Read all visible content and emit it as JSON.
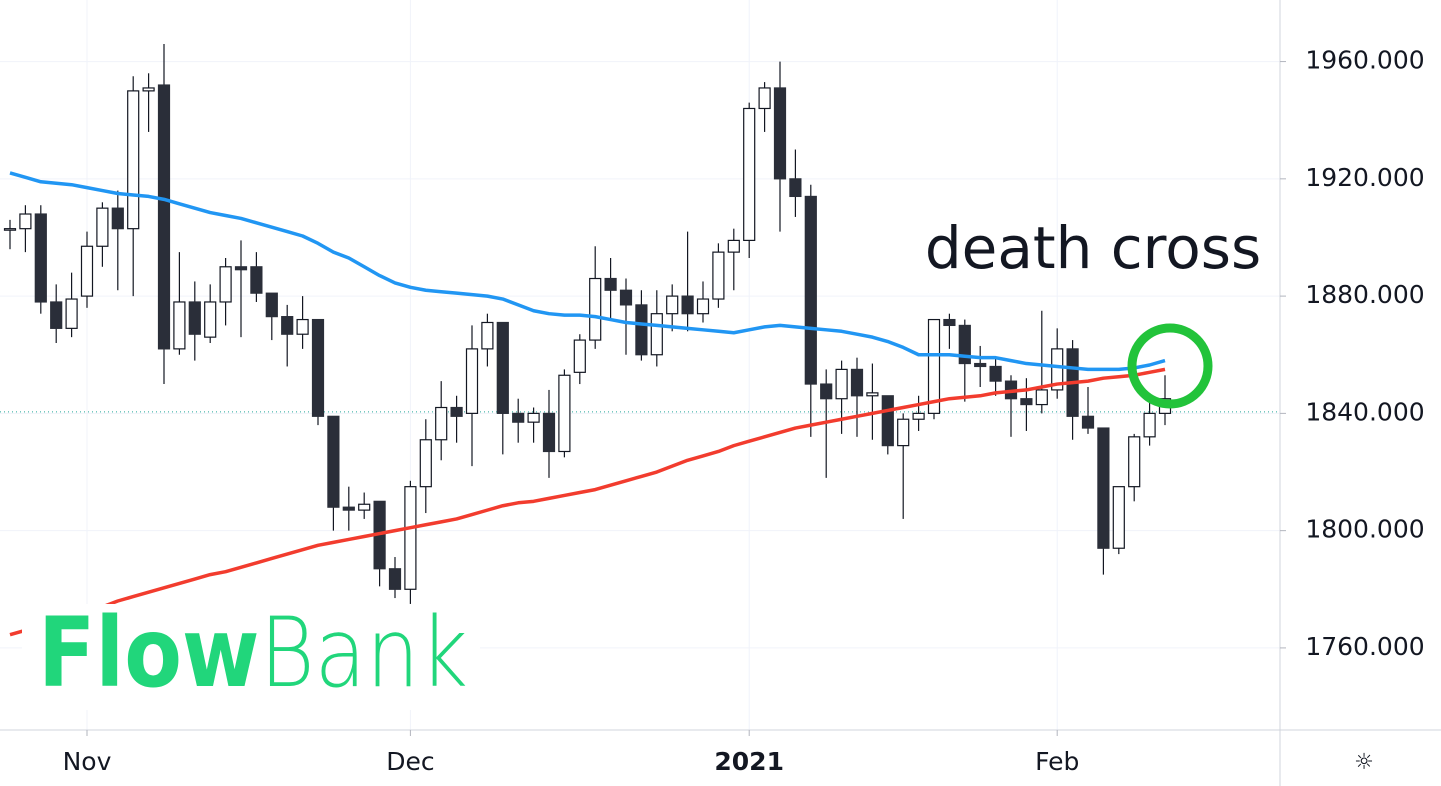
{
  "chart_data": {
    "type": "candlestick",
    "annotation": "death cross",
    "logo": {
      "bold": "Flow",
      "light": "Bank"
    },
    "categories": [
      null,
      null,
      null,
      null,
      null,
      "Nov",
      null,
      null,
      null,
      null,
      null,
      null,
      null,
      null,
      null,
      null,
      null,
      null,
      null,
      null,
      null,
      null,
      null,
      null,
      null,
      null,
      "Dec",
      null,
      null,
      null,
      null,
      null,
      null,
      null,
      null,
      null,
      null,
      null,
      null,
      null,
      null,
      null,
      null,
      null,
      null,
      null,
      null,
      null,
      "2021",
      null,
      null,
      null,
      null,
      null,
      null,
      null,
      null,
      null,
      null,
      null,
      null,
      null,
      null,
      null,
      null,
      null,
      null,
      null,
      "Feb",
      null,
      null,
      null,
      null,
      null,
      null,
      null
    ],
    "open": [
      1903,
      1903,
      1908,
      1878,
      1869,
      1880,
      1897,
      1910,
      1903,
      1950,
      1952,
      1862,
      1878,
      1866,
      1878,
      1890,
      1890,
      1881,
      1873,
      1867,
      1872,
      1839,
      1808,
      1807,
      1810,
      1787,
      1780,
      1815,
      1831,
      1842,
      1840,
      1862,
      1871,
      1840,
      1837,
      1840,
      1827,
      1854,
      1865,
      1886,
      1882,
      1877,
      1860,
      1874,
      1880,
      1874,
      1879,
      1895,
      1899,
      1944,
      1951,
      1920,
      1914,
      1850,
      1845,
      1855,
      1846,
      1846,
      1829,
      1838,
      1840,
      1872,
      1870,
      1857,
      1856,
      1851,
      1845,
      1843,
      1848,
      1862,
      1839,
      1835,
      1794,
      1815,
      1832,
      1840
    ],
    "high": [
      1906,
      1911,
      1911,
      1884,
      1888,
      1902,
      1912,
      1916,
      1955,
      1956,
      1966,
      1895,
      1885,
      1884,
      1893,
      1899,
      1895,
      1881,
      1877,
      1880,
      1872,
      1839,
      1815,
      1813,
      1810,
      1791,
      1817,
      1838,
      1851,
      1846,
      1870,
      1874,
      1871,
      1845,
      1842,
      1848,
      1855,
      1867,
      1897,
      1893,
      1886,
      1882,
      1882,
      1884,
      1902,
      1885,
      1898,
      1903,
      1946,
      1953,
      1960,
      1930,
      1918,
      1855,
      1858,
      1859,
      1857,
      1846,
      1840,
      1846,
      1872,
      1874,
      1872,
      1863,
      1859,
      1853,
      1852,
      1875,
      1869,
      1865,
      1849,
      1835,
      1815,
      1833,
      1845,
      1853
    ],
    "low": [
      1896,
      1895,
      1874,
      1864,
      1866,
      1876,
      1890,
      1882,
      1880,
      1936,
      1850,
      1860,
      1858,
      1864,
      1870,
      1866,
      1878,
      1865,
      1856,
      1862,
      1836,
      1800,
      1800,
      1804,
      1781,
      1777,
      1775,
      1806,
      1824,
      1830,
      1822,
      1856,
      1826,
      1830,
      1830,
      1818,
      1825,
      1850,
      1862,
      1872,
      1860,
      1858,
      1856,
      1868,
      1868,
      1871,
      1876,
      1882,
      1893,
      1936,
      1902,
      1907,
      1832,
      1818,
      1833,
      1832,
      1831,
      1826,
      1804,
      1834,
      1838,
      1862,
      1844,
      1849,
      1846,
      1832,
      1834,
      1840,
      1845,
      1831,
      1833,
      1785,
      1792,
      1810,
      1829,
      1836
    ],
    "close": [
      1903,
      1908,
      1878,
      1869,
      1879,
      1897,
      1910,
      1903,
      1950,
      1951,
      1862,
      1878,
      1867,
      1878,
      1890,
      1889,
      1881,
      1873,
      1867,
      1872,
      1839,
      1808,
      1807,
      1809,
      1787,
      1780,
      1815,
      1831,
      1842,
      1839,
      1862,
      1871,
      1840,
      1837,
      1840,
      1827,
      1853,
      1865,
      1886,
      1882,
      1877,
      1860,
      1874,
      1880,
      1874,
      1879,
      1895,
      1899,
      1944,
      1951,
      1920,
      1914,
      1850,
      1845,
      1855,
      1846,
      1847,
      1829,
      1838,
      1840,
      1872,
      1870,
      1857,
      1856,
      1851,
      1845,
      1843,
      1848,
      1862,
      1839,
      1835,
      1794,
      1815,
      1832,
      1840,
      1845
    ],
    "up_color": "#ffffff",
    "down_color": "#2a2e39",
    "series": [
      {
        "color": "#2196f3",
        "values": [
          1922,
          1920.5,
          1919,
          1918.5,
          1918,
          1917,
          1916,
          1915,
          1914.5,
          1914,
          1913,
          1911.5,
          1910,
          1908.5,
          1907.5,
          1906.5,
          1905,
          1903.5,
          1902,
          1900.5,
          1898,
          1895,
          1893,
          1890,
          1887,
          1884.5,
          1883,
          1882,
          1881.5,
          1881,
          1880.5,
          1880,
          1879,
          1877,
          1875,
          1874,
          1873.5,
          1873.5,
          1873,
          1872,
          1871,
          1870.5,
          1870,
          1869.5,
          1869,
          1868.5,
          1868,
          1867.5,
          1868.5,
          1869.5,
          1870,
          1869.5,
          1869,
          1868.5,
          1868,
          1867,
          1866,
          1864.5,
          1862.5,
          1860,
          1860,
          1860,
          1859.5,
          1859,
          1859,
          1858,
          1857,
          1856.5,
          1856,
          1855.5,
          1855,
          1855,
          1855,
          1855.5,
          1856.5,
          1858
        ]
      },
      {
        "color": "#f23c2e",
        "values": [
          1764.5,
          1766,
          1768,
          1769.5,
          1771,
          1772.5,
          1774,
          1776,
          1777.5,
          1779,
          1780.5,
          1782,
          1783.5,
          1785,
          1786,
          1787.5,
          1789,
          1790.5,
          1792,
          1793.5,
          1795,
          1796,
          1797,
          1798,
          1799,
          1800,
          1801,
          1802,
          1803,
          1804,
          1805.5,
          1807,
          1808.5,
          1809.5,
          1810,
          1811,
          1812,
          1813,
          1814,
          1815.5,
          1817,
          1818.5,
          1820,
          1822,
          1824,
          1825.5,
          1827,
          1829,
          1830.5,
          1832,
          1833.5,
          1835,
          1836,
          1837,
          1838,
          1839,
          1840,
          1841,
          1842,
          1843,
          1844,
          1845,
          1845.5,
          1846,
          1847,
          1847.5,
          1848,
          1849,
          1850,
          1850.5,
          1851,
          1852,
          1852.5,
          1853,
          1854,
          1855
        ]
      }
    ],
    "price_line": 1840.5,
    "ylim": [
      1732,
      1981
    ],
    "yticks": [
      {
        "value": 1760,
        "label": "1760.000"
      },
      {
        "value": 1800,
        "label": "1800.000"
      },
      {
        "value": 1840,
        "label": "1840.000"
      },
      {
        "value": 1880,
        "label": "1880.000"
      },
      {
        "value": 1920,
        "label": "1920.000"
      },
      {
        "value": 1960,
        "label": "1960.000"
      }
    ],
    "grid": true
  }
}
